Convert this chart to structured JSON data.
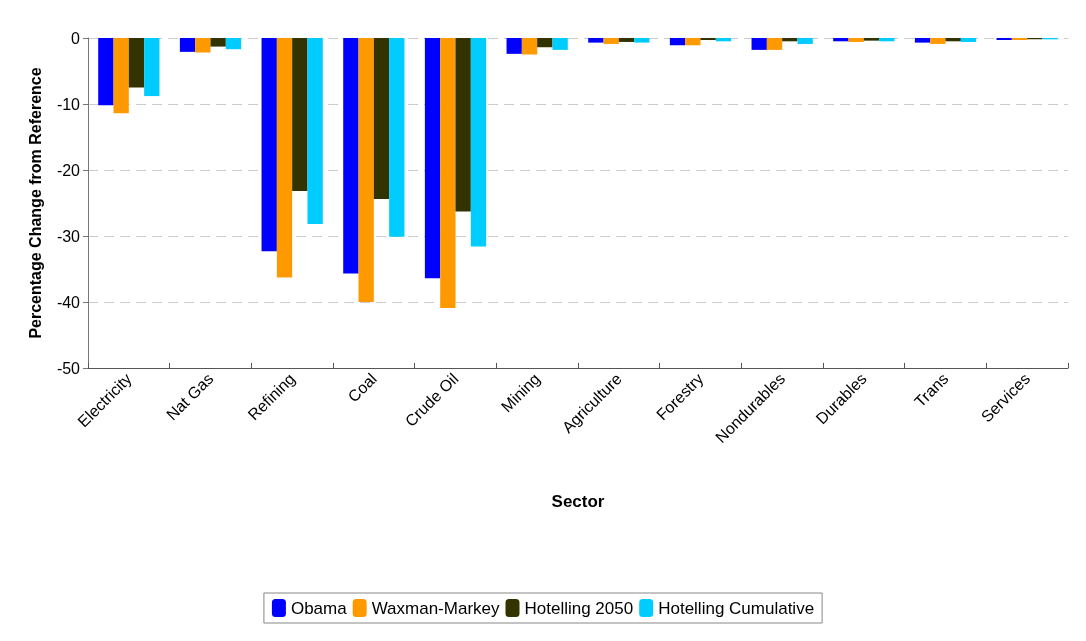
{
  "chart_data": {
    "type": "bar",
    "xlabel": "Sector",
    "ylabel": "Percentage Change from Reference",
    "categories": [
      "Electricity",
      "Nat Gas",
      "Refining",
      "Coal",
      "Crude Oil",
      "Mining",
      "Agriculture",
      "Forestry",
      "Nondurables",
      "Durables",
      "Trans",
      "Services"
    ],
    "series": [
      {
        "name": "Obama",
        "color": "#0000ff",
        "values": [
          -10.2,
          -2.1,
          -32.3,
          -35.7,
          -36.4,
          -2.4,
          -0.7,
          -1.1,
          -1.8,
          -0.5,
          -0.7,
          -0.3
        ]
      },
      {
        "name": "Waxman-Markey",
        "color": "#ff9900",
        "values": [
          -11.4,
          -2.2,
          -36.3,
          -40,
          -40.9,
          -2.5,
          -0.9,
          -1.1,
          -1.8,
          -0.6,
          -0.9,
          -0.3
        ]
      },
      {
        "name": "Hotelling 2050",
        "color": "#333300",
        "values": [
          -7.5,
          -1.3,
          -23.2,
          -24.4,
          -26.3,
          -1.4,
          -0.6,
          -0.3,
          -0.5,
          -0.4,
          -0.5,
          -0.2
        ]
      },
      {
        "name": "Hotelling Cumulative",
        "color": "#00ccff",
        "values": [
          -8.8,
          -1.7,
          -28.2,
          -30.1,
          -31.6,
          -1.8,
          -0.7,
          -0.5,
          -0.9,
          -0.5,
          -0.6,
          -0.2
        ]
      }
    ],
    "ylim": [
      -50,
      0
    ],
    "yticks": [
      -50,
      -40,
      -30,
      -20,
      -10,
      0
    ],
    "grid": "y",
    "legend": "bottom"
  }
}
